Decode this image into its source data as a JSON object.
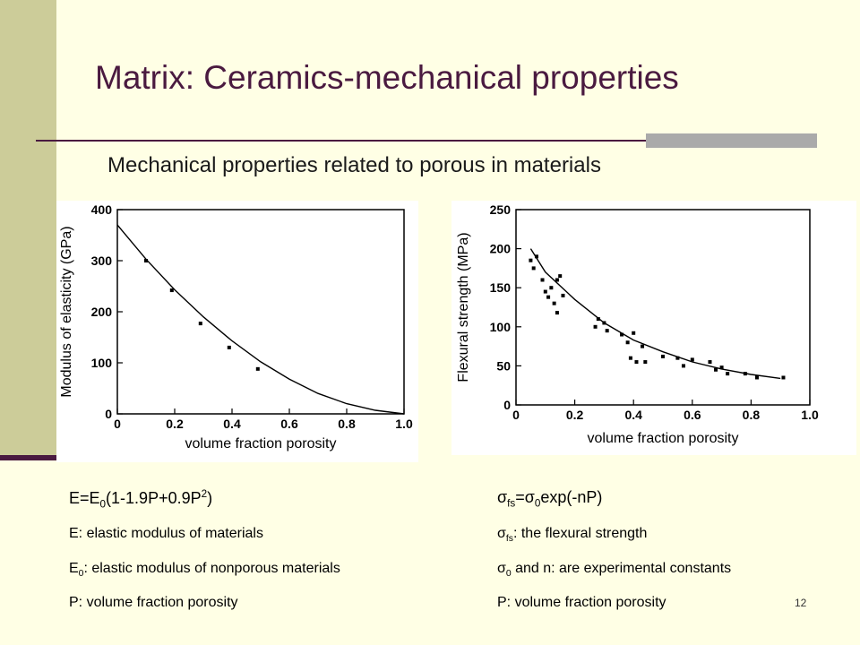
{
  "slide": {
    "title": "Matrix: Ceramics-mechanical properties",
    "subtitle": "Mechanical properties related to porous in materials",
    "page_number": "12"
  },
  "left_text": {
    "formula_prefix": "E=E",
    "formula_sub": "0",
    "formula_mid": "(1-1.9P+0.9P",
    "formula_sup": "2",
    "formula_suffix": ")",
    "line1": "E: elastic modulus of materials",
    "line2_prefix": "E",
    "line2_sub": "0",
    "line2_rest": ": elastic modulus of nonporous materials",
    "line3": "P: volume fraction porosity"
  },
  "right_text": {
    "formula_sigma1": "σ",
    "formula_sub1": "fs",
    "formula_eq": "=",
    "formula_sigma2": "σ",
    "formula_sub2": "0",
    "formula_rest": "exp(-nP)",
    "line1_sigma": "σ",
    "line1_sub": "fs",
    "line1_rest": ": the flexural strength",
    "line2_sigma": "σ",
    "line2_sub": "0",
    "line2_rest": " and n: are experimental constants",
    "line3": "P: volume fraction porosity"
  },
  "colors": {
    "accent": "#4a1a40",
    "sidebar": "#cccc99",
    "background": "#ffffe5"
  },
  "chart_data": [
    {
      "type": "scatter",
      "xlabel": "volume fraction porosity",
      "ylabel": "Modulus of elasticity (GPa)",
      "xlim": [
        0,
        1.0
      ],
      "ylim": [
        0,
        400
      ],
      "xticks": [
        "0",
        "0.2",
        "0.4",
        "0.6",
        "0.8",
        "1.0"
      ],
      "yticks": [
        "0",
        "100",
        "200",
        "300",
        "400"
      ],
      "points": [
        {
          "x": 0.1,
          "y": 300
        },
        {
          "x": 0.19,
          "y": 242
        },
        {
          "x": 0.29,
          "y": 177
        },
        {
          "x": 0.39,
          "y": 130
        },
        {
          "x": 0.49,
          "y": 88
        }
      ],
      "fit_curve": [
        {
          "x": 0.0,
          "y": 370
        },
        {
          "x": 0.1,
          "y": 303
        },
        {
          "x": 0.2,
          "y": 243
        },
        {
          "x": 0.3,
          "y": 190
        },
        {
          "x": 0.4,
          "y": 143
        },
        {
          "x": 0.5,
          "y": 102
        },
        {
          "x": 0.6,
          "y": 68
        },
        {
          "x": 0.7,
          "y": 40
        },
        {
          "x": 0.8,
          "y": 20
        },
        {
          "x": 0.9,
          "y": 7
        },
        {
          "x": 1.0,
          "y": 0
        }
      ]
    },
    {
      "type": "scatter",
      "xlabel": "volume fraction porosity",
      "ylabel": "Flexural strength (MPa)",
      "xlim": [
        0,
        1.0
      ],
      "ylim": [
        0,
        250
      ],
      "xticks": [
        "0",
        "0.2",
        "0.4",
        "0.6",
        "0.8",
        "1.0"
      ],
      "yticks": [
        "0",
        "50",
        "100",
        "150",
        "200",
        "250"
      ],
      "points": [
        {
          "x": 0.05,
          "y": 185
        },
        {
          "x": 0.06,
          "y": 175
        },
        {
          "x": 0.07,
          "y": 190
        },
        {
          "x": 0.09,
          "y": 160
        },
        {
          "x": 0.1,
          "y": 145
        },
        {
          "x": 0.11,
          "y": 138
        },
        {
          "x": 0.12,
          "y": 150
        },
        {
          "x": 0.13,
          "y": 130
        },
        {
          "x": 0.14,
          "y": 118
        },
        {
          "x": 0.14,
          "y": 160
        },
        {
          "x": 0.15,
          "y": 165
        },
        {
          "x": 0.16,
          "y": 140
        },
        {
          "x": 0.27,
          "y": 100
        },
        {
          "x": 0.28,
          "y": 110
        },
        {
          "x": 0.3,
          "y": 105
        },
        {
          "x": 0.31,
          "y": 95
        },
        {
          "x": 0.36,
          "y": 90
        },
        {
          "x": 0.38,
          "y": 80
        },
        {
          "x": 0.39,
          "y": 60
        },
        {
          "x": 0.4,
          "y": 92
        },
        {
          "x": 0.41,
          "y": 55
        },
        {
          "x": 0.43,
          "y": 75
        },
        {
          "x": 0.44,
          "y": 55
        },
        {
          "x": 0.5,
          "y": 62
        },
        {
          "x": 0.55,
          "y": 60
        },
        {
          "x": 0.57,
          "y": 50
        },
        {
          "x": 0.6,
          "y": 58
        },
        {
          "x": 0.66,
          "y": 55
        },
        {
          "x": 0.68,
          "y": 45
        },
        {
          "x": 0.7,
          "y": 48
        },
        {
          "x": 0.72,
          "y": 40
        },
        {
          "x": 0.78,
          "y": 40
        },
        {
          "x": 0.82,
          "y": 35
        },
        {
          "x": 0.91,
          "y": 35
        }
      ],
      "fit_curve": [
        {
          "x": 0.05,
          "y": 200
        },
        {
          "x": 0.1,
          "y": 170
        },
        {
          "x": 0.2,
          "y": 135
        },
        {
          "x": 0.3,
          "y": 105
        },
        {
          "x": 0.4,
          "y": 83
        },
        {
          "x": 0.5,
          "y": 68
        },
        {
          "x": 0.6,
          "y": 55
        },
        {
          "x": 0.7,
          "y": 46
        },
        {
          "x": 0.8,
          "y": 39
        },
        {
          "x": 0.9,
          "y": 34
        }
      ]
    }
  ]
}
